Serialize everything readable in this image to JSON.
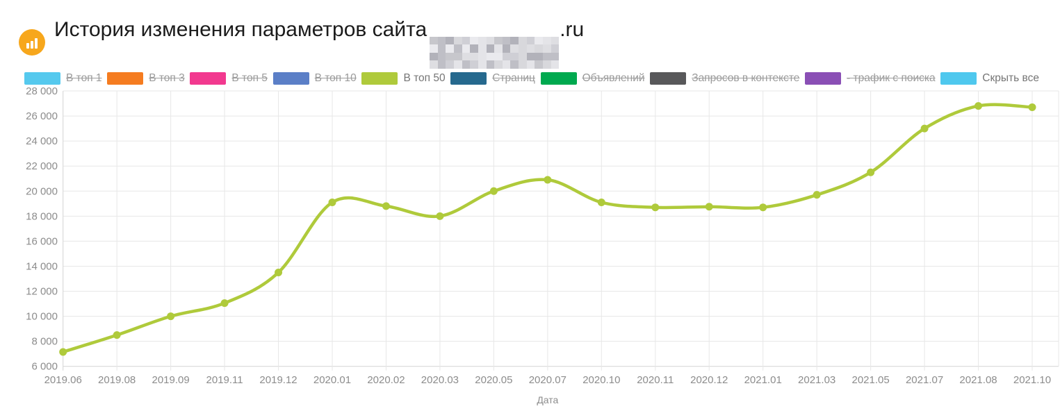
{
  "header": {
    "title": "История изменения параметров сайта",
    "site_name_censored": true,
    "domain_suffix": ".ru"
  },
  "legend": {
    "items": [
      {
        "label": "В топ 1",
        "color": "#55C9EE",
        "struck": true
      },
      {
        "label": "В топ 3",
        "color": "#F57C20",
        "struck": true
      },
      {
        "label": "В топ 5",
        "color": "#F2398F",
        "struck": true
      },
      {
        "label": "В топ 10",
        "color": "#5B7FC7",
        "struck": true
      },
      {
        "label": "В топ 50",
        "color": "#AFCA3B",
        "struck": false
      },
      {
        "label": "Страниц",
        "color": "#26698E",
        "struck": true
      },
      {
        "label": "Объявлений",
        "color": "#00A94F",
        "struck": true
      },
      {
        "label": "Запросов в контексте",
        "color": "#58585A",
        "struck": true
      },
      {
        "label": "- трафик с поиска",
        "color": "#8A4FB5",
        "struck": true
      },
      {
        "label": "Скрыть все",
        "color": "#4FC8EE",
        "struck": false
      }
    ]
  },
  "chart_data": {
    "type": "line",
    "title": "",
    "xlabel": "Дата",
    "ylabel": "",
    "ylim": [
      6000,
      28000
    ],
    "ytick_step": 2000,
    "grid": true,
    "legend_position": "top",
    "categories": [
      "2019.06",
      "2019.08",
      "2019.09",
      "2019.11",
      "2019.12",
      "2020.01",
      "2020.02",
      "2020.03",
      "2020.05",
      "2020.07",
      "2020.10",
      "2020.11",
      "2020.12",
      "2021.01",
      "2021.03",
      "2021.05",
      "2021.07",
      "2021.08",
      "2021.10"
    ],
    "series": [
      {
        "name": "В топ 50",
        "color": "#AFCA3B",
        "values": [
          7150,
          8500,
          10000,
          11050,
          13500,
          19100,
          18800,
          18000,
          20000,
          20900,
          19100,
          18700,
          18750,
          18700,
          19700,
          21500,
          25000,
          26800,
          26700
        ]
      }
    ]
  },
  "colors": {
    "accent_icon": "#F7A71C",
    "grid_line": "#e7e7e7",
    "axis_line": "#d3d3d3",
    "axis_text": "#8c8c8c",
    "title_text": "#1b1b1b"
  }
}
